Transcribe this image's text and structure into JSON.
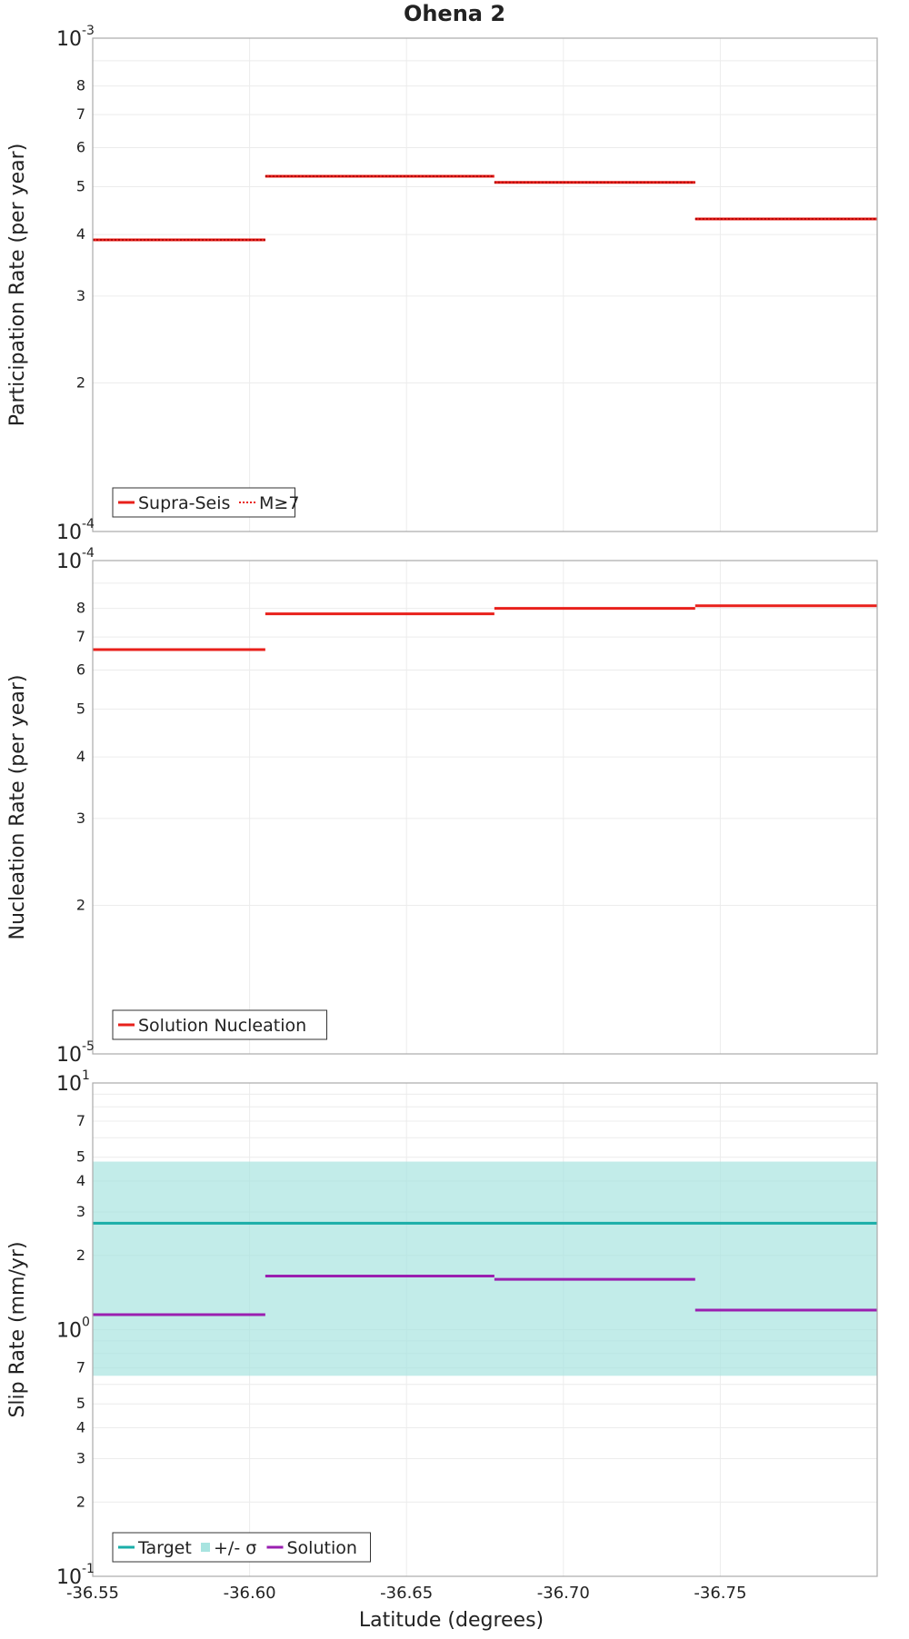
{
  "figure_title": "Ohena 2",
  "chart_data": [
    {
      "type": "line",
      "id": "participation",
      "ylabel": "Participation Rate (per year)",
      "yscale": "log",
      "ylim": [
        0.0001,
        0.001
      ],
      "xlim": [
        -36.55,
        -36.8
      ],
      "x_ticks": [
        "-36.55",
        "-36.60",
        "-36.65",
        "-36.70",
        "-36.75"
      ],
      "x_tick_values": [
        -36.55,
        -36.6,
        -36.65,
        -36.7,
        -36.75
      ],
      "y_major_ticks": [
        {
          "base": "10",
          "exp": "-4"
        },
        {
          "base": "10",
          "exp": "-3"
        }
      ],
      "y_minor_ticks": [
        "2",
        "3",
        "4",
        "5",
        "6",
        "7",
        "8"
      ],
      "series": [
        {
          "name": "Supra-Seis",
          "color": "#e8201b",
          "style": "solid",
          "segments": [
            [
              -36.55,
              -36.605,
              0.00039
            ],
            [
              -36.605,
              -36.678,
              0.000525
            ],
            [
              -36.678,
              -36.742,
              0.00051
            ],
            [
              -36.742,
              -36.8,
              0.00043
            ]
          ]
        },
        {
          "name": "M≥7",
          "color": "#e8201b",
          "style": "dotted",
          "segments": [
            [
              -36.55,
              -36.605,
              0.00039
            ],
            [
              -36.605,
              -36.678,
              0.000525
            ],
            [
              -36.678,
              -36.742,
              0.00051
            ],
            [
              -36.742,
              -36.8,
              0.00043
            ]
          ]
        }
      ],
      "legend": [
        {
          "label": "Supra-Seis",
          "style": "solid",
          "color": "#e8201b"
        },
        {
          "label": "M≥7",
          "style": "dotted",
          "color": "#e8201b"
        }
      ]
    },
    {
      "type": "line",
      "id": "nucleation",
      "ylabel": "Nucleation Rate (per year)",
      "yscale": "log",
      "ylim": [
        1e-05,
        0.0001
      ],
      "xlim": [
        -36.55,
        -36.8
      ],
      "x_ticks": [
        "-36.55",
        "-36.60",
        "-36.65",
        "-36.70",
        "-36.75"
      ],
      "x_tick_values": [
        -36.55,
        -36.6,
        -36.65,
        -36.7,
        -36.75
      ],
      "y_major_ticks": [
        {
          "base": "10",
          "exp": "-5"
        },
        {
          "base": "10",
          "exp": "-4"
        }
      ],
      "y_minor_ticks": [
        "2",
        "3",
        "4",
        "5",
        "6",
        "7",
        "8"
      ],
      "series": [
        {
          "name": "Solution Nucleation",
          "color": "#e8201b",
          "style": "solid",
          "segments": [
            [
              -36.55,
              -36.605,
              6.6e-05
            ],
            [
              -36.605,
              -36.678,
              7.8e-05
            ],
            [
              -36.678,
              -36.742,
              8e-05
            ],
            [
              -36.742,
              -36.8,
              8.1e-05
            ]
          ]
        }
      ],
      "legend": [
        {
          "label": "Solution Nucleation",
          "style": "solid",
          "color": "#e8201b"
        }
      ]
    },
    {
      "type": "line",
      "id": "sliprate",
      "ylabel": "Slip Rate (mm/yr)",
      "xlabel": "Latitude (degrees)",
      "yscale": "log",
      "ylim": [
        0.1,
        10
      ],
      "xlim": [
        -36.55,
        -36.8
      ],
      "x_ticks": [
        "-36.55",
        "-36.60",
        "-36.65",
        "-36.70",
        "-36.75"
      ],
      "x_tick_values": [
        -36.55,
        -36.6,
        -36.65,
        -36.7,
        -36.75
      ],
      "y_major_ticks": [
        {
          "base": "10",
          "exp": "-1"
        },
        {
          "base": "10",
          "exp": "0"
        },
        {
          "base": "10",
          "exp": "1"
        }
      ],
      "y_minor_ticks": [
        "2",
        "3",
        "4",
        "5",
        "7",
        "2",
        "3",
        "4",
        "5",
        "7"
      ],
      "y_minor_values": [
        0.2,
        0.3,
        0.4,
        0.5,
        0.7,
        2,
        3,
        4,
        5,
        7
      ],
      "band": {
        "name": "+/- σ",
        "color": "#a8e4e0",
        "low": 0.65,
        "high": 4.8
      },
      "series": [
        {
          "name": "Target",
          "color": "#1aaea8",
          "style": "solid",
          "segments": [
            [
              -36.55,
              -36.8,
              2.7
            ]
          ]
        },
        {
          "name": "Solution",
          "color": "#9a1fb0",
          "style": "solid",
          "segments": [
            [
              -36.55,
              -36.605,
              1.15
            ],
            [
              -36.605,
              -36.678,
              1.65
            ],
            [
              -36.678,
              -36.742,
              1.6
            ],
            [
              -36.742,
              -36.8,
              1.2
            ]
          ]
        }
      ],
      "legend": [
        {
          "label": "Target",
          "style": "solid",
          "color": "#1aaea8"
        },
        {
          "label": "+/- σ",
          "style": "band",
          "color": "#a8e4e0"
        },
        {
          "label": "Solution",
          "style": "solid",
          "color": "#9a1fb0"
        }
      ]
    }
  ]
}
